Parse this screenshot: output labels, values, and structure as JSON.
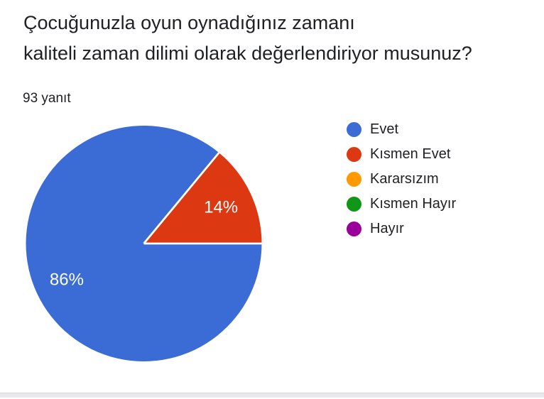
{
  "header": {
    "title_lines": [
      "Çocuğunuzla oyun oynadığınız zamanı",
      "kaliteli zaman dilimi olarak değerlendiriyor musunuz?"
    ],
    "response_count": "93 yanıt"
  },
  "chart_data": {
    "type": "pie",
    "title": "Çocuğunuzla oyun oynadığınız zamanı kaliteli zaman dilimi olarak değerlendiriyor musunuz?",
    "response_count_label": "93 yanıt",
    "legend_position": "right",
    "start_angle_deg": 0,
    "direction": "clockwise",
    "slice_label_color": "#ffffff",
    "separator_color": "#ffffff",
    "slices": [
      {
        "label": "Evet",
        "value": 86,
        "percent_label": "86%",
        "color": "#3B6CD6"
      },
      {
        "label": "Kısmen Evet",
        "value": 14,
        "percent_label": "14%",
        "color": "#DC3912"
      },
      {
        "label": "Kararsızım",
        "value": 0,
        "color": "#FF9900"
      },
      {
        "label": "Kısmen Hayır",
        "value": 0,
        "color": "#109618"
      },
      {
        "label": "Hayır",
        "value": 0,
        "color": "#990099"
      }
    ]
  }
}
